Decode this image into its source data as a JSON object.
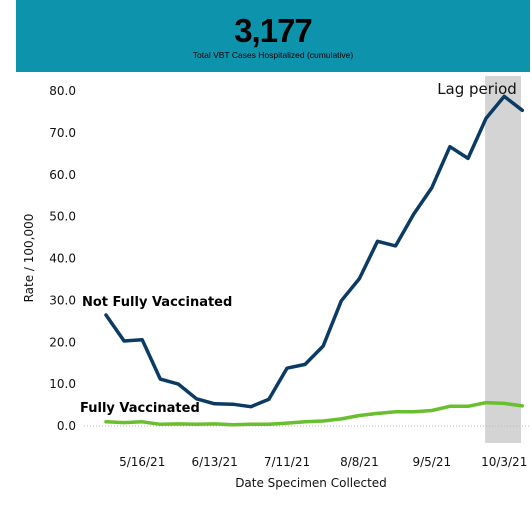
{
  "banner": {
    "value": "3,177",
    "subtitle": "Total VBT Cases Hospitalized  (cumulative)",
    "color": "#0e93ad"
  },
  "chart_data": {
    "type": "line",
    "xlabel": "Date Specimen Collected",
    "ylabel": "Rate / 100,000",
    "ylim": [
      0,
      80
    ],
    "y_ticks": [
      "0.0",
      "10.0",
      "20.0",
      "30.0",
      "40.0",
      "50.0",
      "60.0",
      "70.0",
      "80.0"
    ],
    "x_ticks": [
      "5/16/21",
      "6/13/21",
      "7/11/21",
      "8/8/21",
      "9/5/21",
      "10/3/21"
    ],
    "x": [
      "5/2/21",
      "5/9/21",
      "5/16/21",
      "5/23/21",
      "5/30/21",
      "6/6/21",
      "6/13/21",
      "6/20/21",
      "6/27/21",
      "7/4/21",
      "7/11/21",
      "7/18/21",
      "7/25/21",
      "8/1/21",
      "8/8/21",
      "8/15/21",
      "8/22/21",
      "8/29/21",
      "9/5/21",
      "9/12/21",
      "9/19/21",
      "9/26/21",
      "10/3/21",
      "10/10/21"
    ],
    "series": [
      {
        "name": "Not Fully Vaccinated",
        "color": "#0b3a63",
        "values": [
          26.5,
          20.3,
          20.6,
          11.2,
          10.0,
          6.5,
          5.3,
          5.2,
          4.6,
          6.4,
          13.8,
          14.7,
          19.1,
          29.9,
          35.2,
          44.1,
          43.0,
          50.6,
          56.9,
          66.7,
          63.9,
          73.5,
          78.7,
          75.4
        ]
      },
      {
        "name": "Fully Vaccinated",
        "color": "#6abf2e",
        "values": [
          1.0,
          0.8,
          1.0,
          0.4,
          0.5,
          0.4,
          0.5,
          0.3,
          0.4,
          0.4,
          0.7,
          1.0,
          1.2,
          1.7,
          2.5,
          3.0,
          3.4,
          3.4,
          3.7,
          4.7,
          4.7,
          5.6,
          5.4,
          4.8
        ]
      }
    ],
    "annotation": {
      "label": "Lag period",
      "from": "9/26/21",
      "to": "10/10/21",
      "color": "#d4d4d4"
    },
    "grid": false
  }
}
